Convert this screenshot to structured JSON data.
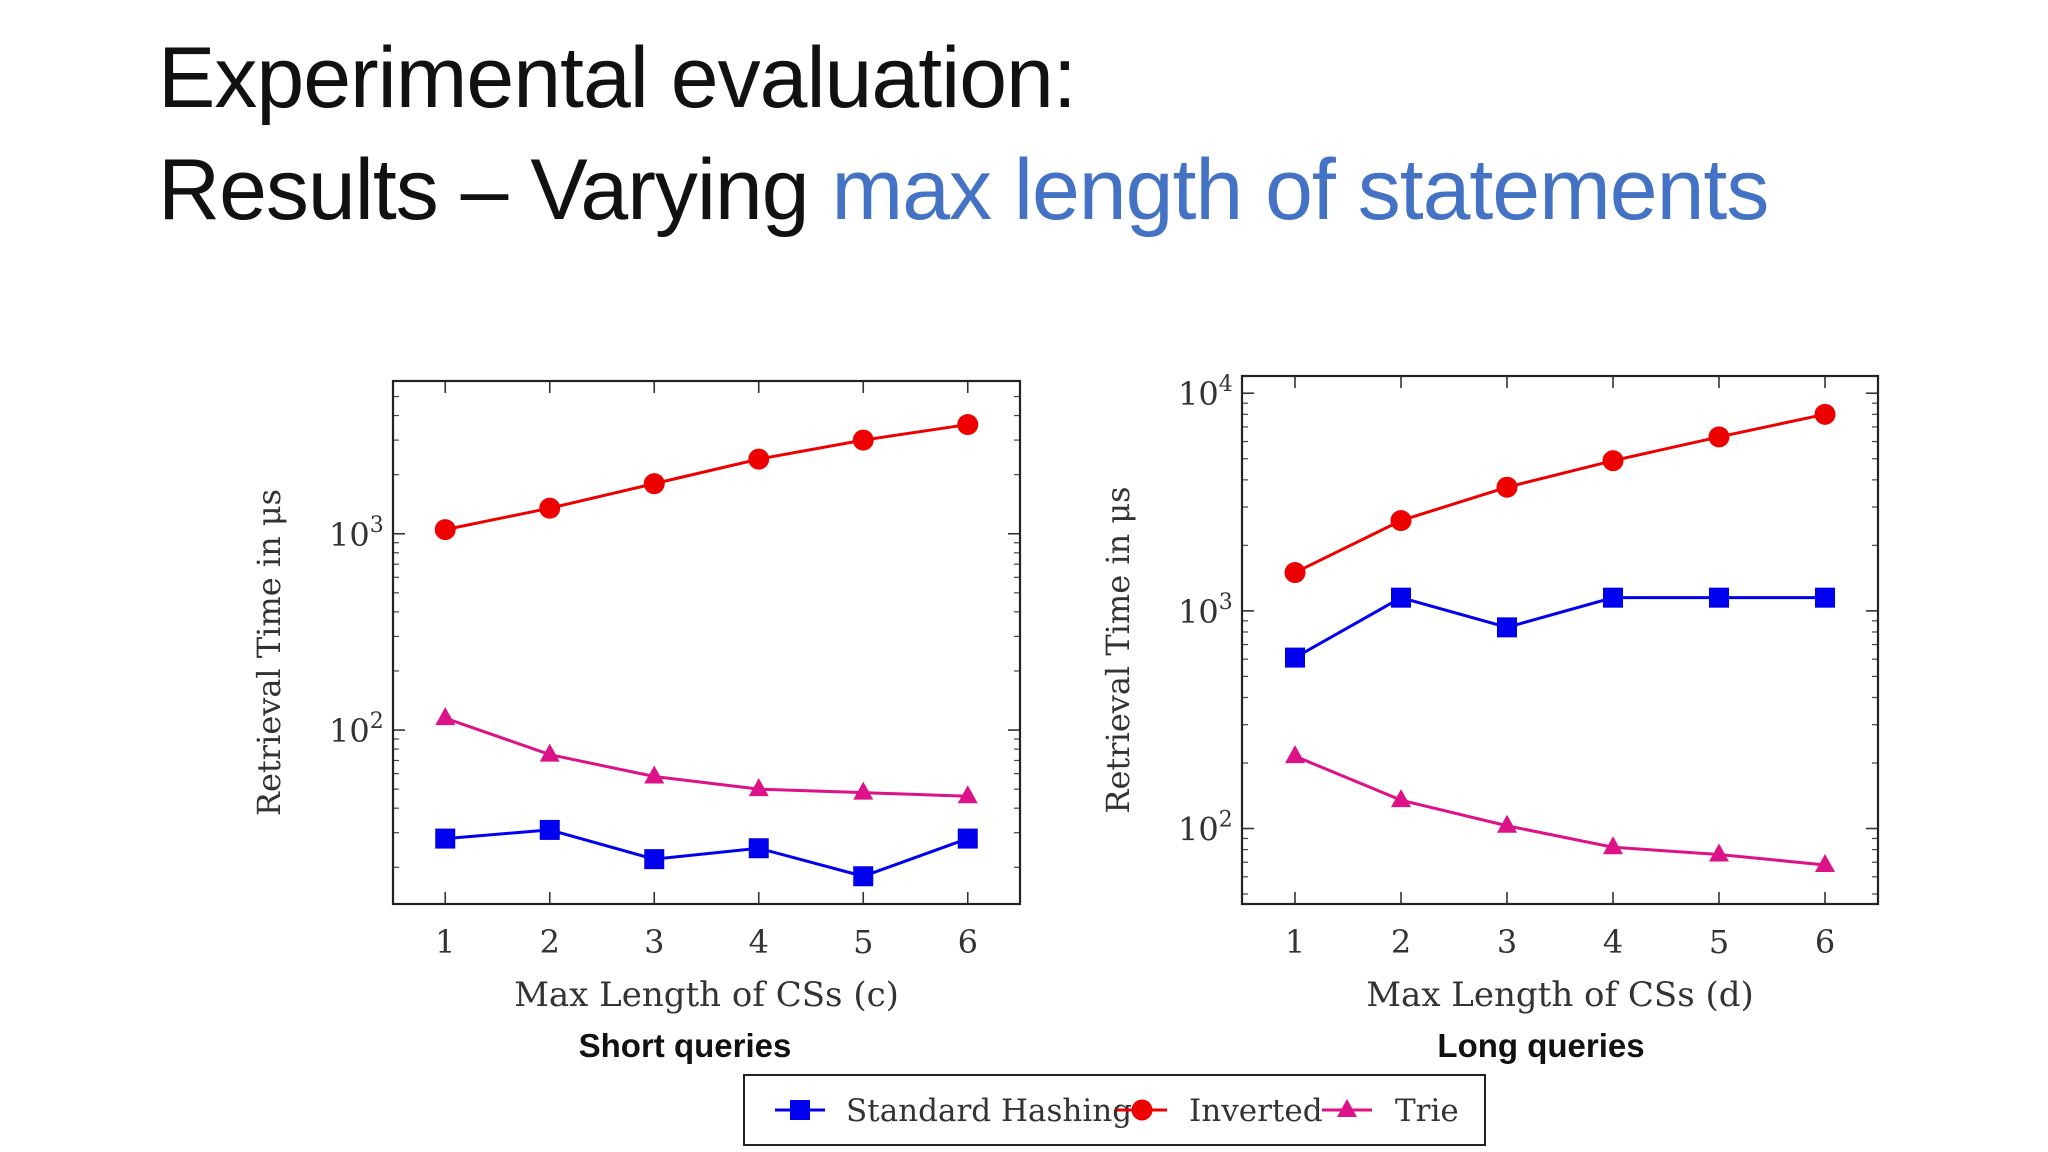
{
  "slide": {
    "title_line1": "Experimental evaluation:",
    "title_line2_prefix": "Results – Varying ",
    "title_line2_accent": "max length of statements",
    "accent_color": "#4472c4"
  },
  "legend": {
    "items": [
      {
        "label": "Standard Hashing",
        "color": "#0000ee",
        "marker": "square"
      },
      {
        "label": "Inverted",
        "color": "#ee0000",
        "marker": "circle"
      },
      {
        "label": "Trie",
        "color": "#dd1188",
        "marker": "triangle"
      }
    ]
  },
  "chart_data": [
    {
      "type": "line",
      "caption": "Short queries",
      "xlabel": "Max Length of CSs (c)",
      "ylabel": "Retrieval Time in μs",
      "yscale": "log",
      "x": [
        1,
        2,
        3,
        4,
        5,
        6
      ],
      "xticks": [
        "1",
        "2",
        "3",
        "4",
        "5",
        "6"
      ],
      "xlim": [
        0.5,
        6.5
      ],
      "ylim": [
        13,
        6000
      ],
      "yticks": [
        {
          "value": 100,
          "base": "10",
          "exp": "2"
        },
        {
          "value": 1000,
          "base": "10",
          "exp": "3"
        }
      ],
      "series": [
        {
          "name": "Standard Hashing",
          "values": [
            28,
            31,
            22,
            25,
            18,
            28
          ]
        },
        {
          "name": "Inverted",
          "values": [
            1050,
            1350,
            1800,
            2400,
            3000,
            3600
          ]
        },
        {
          "name": "Trie",
          "values": [
            115,
            75,
            58,
            50,
            48,
            46
          ]
        }
      ]
    },
    {
      "type": "line",
      "caption": "Long queries",
      "xlabel": "Max Length of CSs (d)",
      "ylabel": "Retrieval Time in μs",
      "yscale": "log",
      "x": [
        1,
        2,
        3,
        4,
        5,
        6
      ],
      "xticks": [
        "1",
        "2",
        "3",
        "4",
        "5",
        "6"
      ],
      "xlim": [
        0.5,
        6.5
      ],
      "ylim": [
        45,
        12000
      ],
      "yticks": [
        {
          "value": 100,
          "base": "10",
          "exp": "2"
        },
        {
          "value": 1000,
          "base": "10",
          "exp": "3"
        },
        {
          "value": 10000,
          "base": "10",
          "exp": "4"
        }
      ],
      "series": [
        {
          "name": "Standard Hashing",
          "values": [
            610,
            1150,
            840,
            1150,
            1150,
            1150
          ]
        },
        {
          "name": "Inverted",
          "values": [
            1500,
            2600,
            3700,
            4900,
            6300,
            8000
          ]
        },
        {
          "name": "Trie",
          "values": [
            215,
            135,
            103,
            82,
            76,
            68
          ]
        }
      ]
    }
  ]
}
